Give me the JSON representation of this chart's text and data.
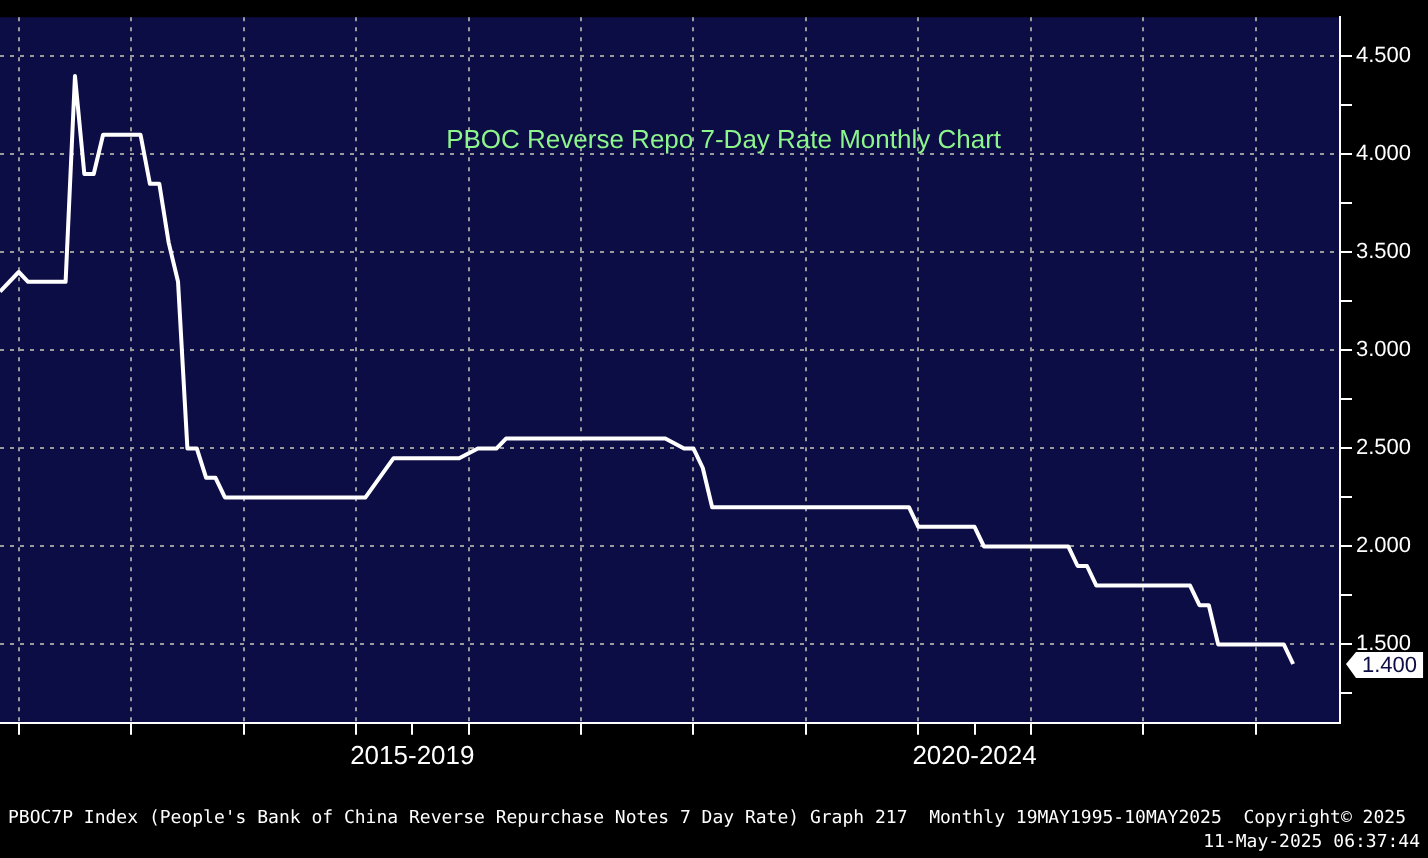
{
  "chart_data": {
    "type": "line",
    "title": "PBOC Reverse Repo 7-Day Rate Monthly Chart",
    "x": [
      "2013-11",
      "2014-01",
      "2014-02",
      "2014-06",
      "2014-07",
      "2014-08",
      "2014-09",
      "2014-10",
      "2015-02",
      "2015-03",
      "2015-04",
      "2015-05",
      "2015-06",
      "2015-07",
      "2015-08",
      "2015-09",
      "2015-10",
      "2015-11",
      "2017-02",
      "2017-05",
      "2017-12",
      "2018-02",
      "2018-04",
      "2018-05",
      "2019-10",
      "2019-12",
      "2020-01",
      "2020-02",
      "2020-03",
      "2021-12",
      "2022-01",
      "2022-07",
      "2022-08",
      "2023-05",
      "2023-06",
      "2023-07",
      "2023-08",
      "2024-06",
      "2024-07",
      "2024-08",
      "2024-09",
      "2025-04",
      "2025-05"
    ],
    "series": [
      {
        "color": "#ffffff",
        "values": [
          3.3,
          3.4,
          3.35,
          3.35,
          4.4,
          3.9,
          3.9,
          4.1,
          4.1,
          3.85,
          3.85,
          3.55,
          3.35,
          2.5,
          2.5,
          2.35,
          2.35,
          2.25,
          2.25,
          2.45,
          2.45,
          2.5,
          2.5,
          2.55,
          2.55,
          2.5,
          2.5,
          2.4,
          2.2,
          2.2,
          2.1,
          2.1,
          2.0,
          2.0,
          1.9,
          1.9,
          1.8,
          1.8,
          1.7,
          1.7,
          1.5,
          1.5,
          1.4
        ]
      }
    ],
    "xlim": [
      "2013-11",
      "2025-10"
    ],
    "xticks": [
      {
        "value": "2014-01",
        "label": null
      },
      {
        "value": "2015-01",
        "label": null
      },
      {
        "value": "2016-01",
        "label": null
      },
      {
        "value": "2017-01",
        "label": null
      },
      {
        "value": "2017-07",
        "label": "2015-2019"
      },
      {
        "value": "2018-01",
        "label": null
      },
      {
        "value": "2019-01",
        "label": null
      },
      {
        "value": "2020-01",
        "label": null
      },
      {
        "value": "2021-01",
        "label": null
      },
      {
        "value": "2022-01",
        "label": null
      },
      {
        "value": "2022-07",
        "label": "2020-2024"
      },
      {
        "value": "2023-01",
        "label": null
      },
      {
        "value": "2024-01",
        "label": null
      },
      {
        "value": "2025-01",
        "label": null
      }
    ],
    "ylim": [
      1.1,
      4.7
    ],
    "yticks": [
      {
        "value": 1.25,
        "label": null
      },
      {
        "value": 1.5,
        "label": "1.500"
      },
      {
        "value": 1.75,
        "label": null
      },
      {
        "value": 2,
        "label": "2.000"
      },
      {
        "value": 2.25,
        "label": null
      },
      {
        "value": 2.5,
        "label": "2.500"
      },
      {
        "value": 2.75,
        "label": null
      },
      {
        "value": 3,
        "label": "3.000"
      },
      {
        "value": 3.25,
        "label": null
      },
      {
        "value": 3.5,
        "label": "3.500"
      },
      {
        "value": 3.75,
        "label": null
      },
      {
        "value": 4,
        "label": "4.000"
      },
      {
        "value": 4.25,
        "label": null
      },
      {
        "value": 4.5,
        "label": "4.500"
      }
    ],
    "annotations": [
      "1.400",
      "PBOC7P Index (People's Bank of China Reverse Repurchase Notes 7 Day Rate) Graph 217  Monthly 19MAY1995-10MAY2025  Copyright© 2025",
      "11-May-2025 06:37:44"
    ],
    "grid": true,
    "legend": false,
    "marker": "none",
    "line_style": "solid"
  }
}
